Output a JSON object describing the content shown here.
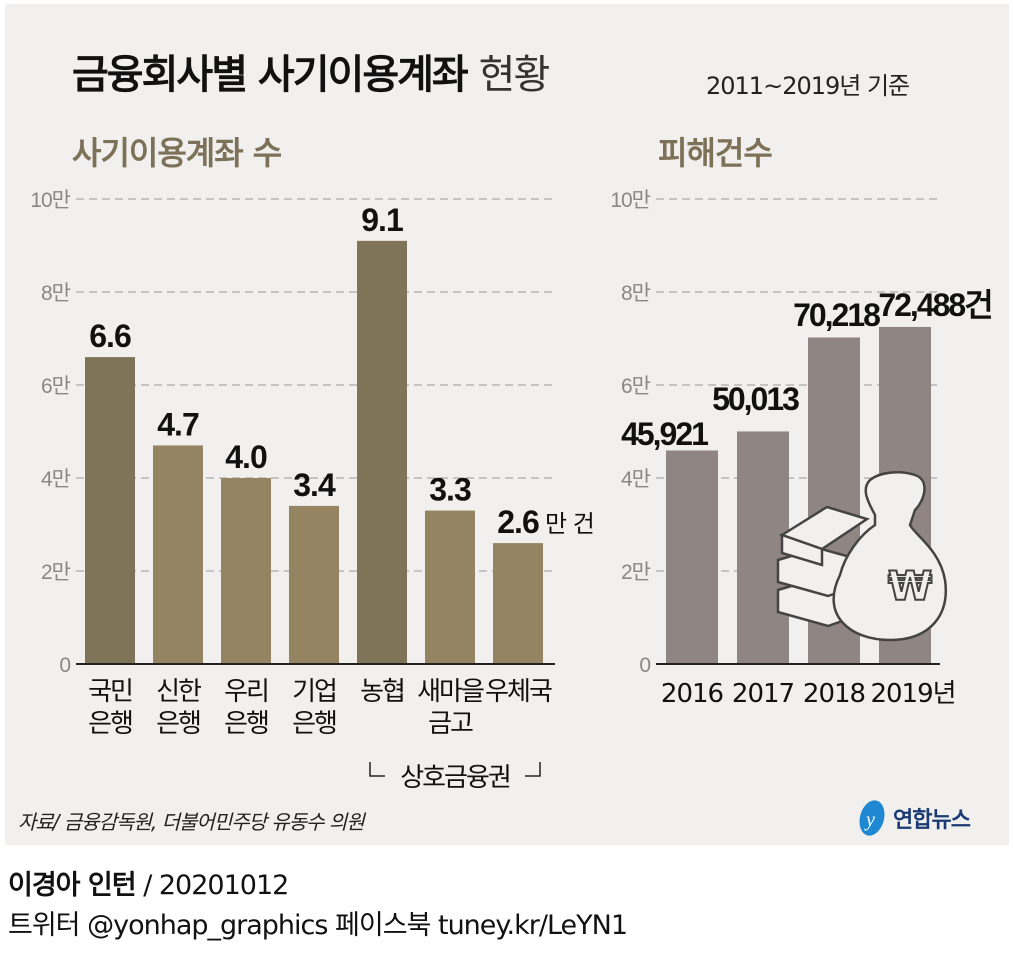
{
  "title": {
    "bold": "금융회사별 사기이용계좌",
    "light": "현황"
  },
  "period": "2011~2019년 기준",
  "source": "자료/ 금융감독원, 더불어민주당 유동수 의원",
  "logo": "연합뉴스",
  "credit": {
    "author": "이경아 인턴",
    "date": " / 20201012"
  },
  "social": "트위터 @yonhap_graphics  페이스북 tuney.kr/LeYN1",
  "colors": {
    "bar_dark": "#7f7358",
    "bar_light": "#948462",
    "bar_right": "#8f8582",
    "subtitle": "#7d7158"
  },
  "chart_data": [
    {
      "type": "bar",
      "title": "사기이용계좌 수",
      "categories": [
        [
          "국민",
          "은행"
        ],
        [
          "신한",
          "은행"
        ],
        [
          "우리",
          "은행"
        ],
        [
          "기업",
          "은행"
        ],
        [
          "농협"
        ],
        [
          "새마을",
          "금고"
        ],
        [
          "우체국"
        ]
      ],
      "values": [
        6.6,
        4.7,
        4.0,
        3.4,
        9.1,
        3.3,
        2.6
      ],
      "labels": [
        "6.6",
        "4.7",
        "4.0",
        "3.4",
        "9.1",
        "3.3",
        "2.6"
      ],
      "unit_suffix": "만 건",
      "highlight": [
        0,
        4
      ],
      "group_label": "상호금융권",
      "yticks": [
        "0",
        "2만",
        "4만",
        "6만",
        "8만",
        "10만"
      ],
      "ylim": [
        0,
        10
      ],
      "grid": true
    },
    {
      "type": "bar",
      "title": "피해건수",
      "categories": [
        "2016",
        "2017",
        "2018",
        "2019년"
      ],
      "values": [
        45921,
        50013,
        70218,
        72488
      ],
      "labels": [
        "45,921",
        "50,013",
        "70,218",
        "72,488건"
      ],
      "yticks": [
        "0",
        "2만",
        "4만",
        "6만",
        "8만",
        "10만"
      ],
      "ylim": [
        0,
        100000
      ],
      "grid": true,
      "icon": "money-bag-icon"
    }
  ]
}
